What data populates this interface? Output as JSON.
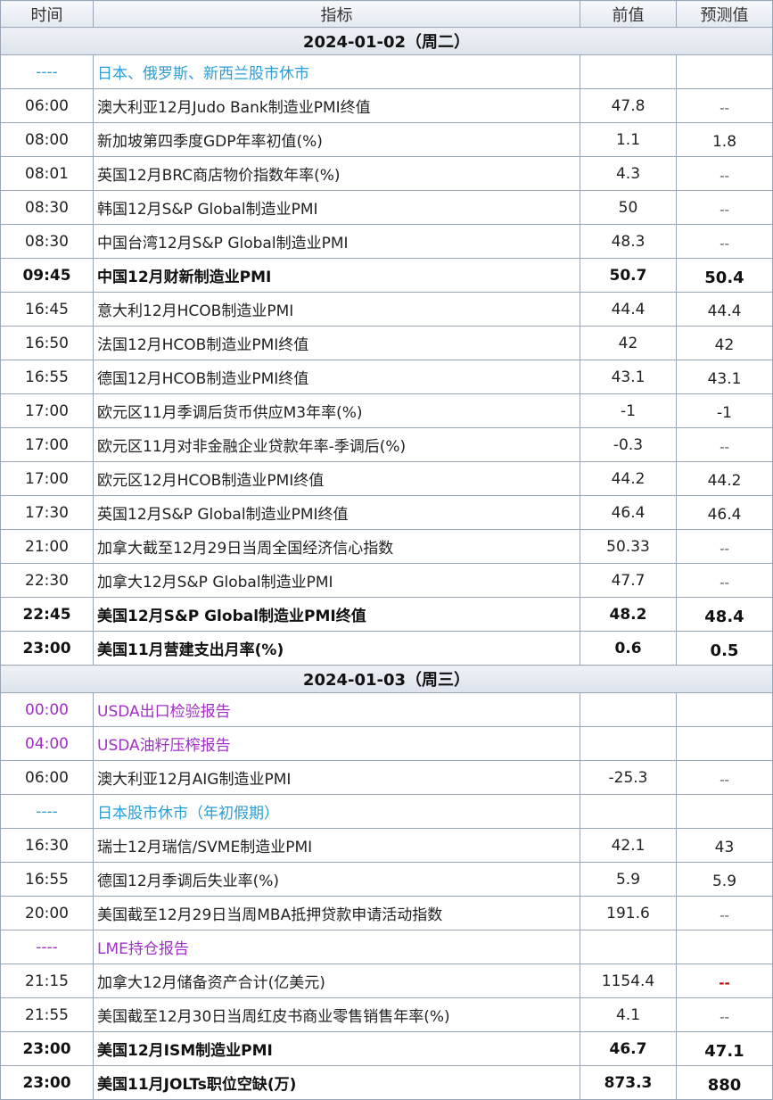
{
  "headers": {
    "time": "时间",
    "indicator": "指标",
    "previous": "前值",
    "forecast": "预测值"
  },
  "sections": [
    {
      "date": "2024-01-02（周二）",
      "rows": [
        {
          "time": "----",
          "indicator": "日本、俄罗斯、新西兰股市休市",
          "previous": "",
          "forecast": "",
          "style": "note-blue"
        },
        {
          "time": "06:00",
          "indicator": "澳大利亚12月Judo Bank制造业PMI终值",
          "previous": "47.8",
          "forecast": "--"
        },
        {
          "time": "08:00",
          "indicator": "新加坡第四季度GDP年率初值(%)",
          "previous": "1.1",
          "forecast": "1.8"
        },
        {
          "time": "08:01",
          "indicator": "英国12月BRC商店物价指数年率(%)",
          "previous": "4.3",
          "forecast": "--"
        },
        {
          "time": "08:30",
          "indicator": "韩国12月S&P Global制造业PMI",
          "previous": "50",
          "forecast": "--"
        },
        {
          "time": "08:30",
          "indicator": "中国台湾12月S&P Global制造业PMI",
          "previous": "48.3",
          "forecast": "--"
        },
        {
          "time": "09:45",
          "indicator": "中国12月财新制造业PMI",
          "previous": "50.7",
          "forecast": "50.4",
          "style": "bold"
        },
        {
          "time": "16:45",
          "indicator": "意大利12月HCOB制造业PMI",
          "previous": "44.4",
          "forecast": "44.4"
        },
        {
          "time": "16:50",
          "indicator": "法国12月HCOB制造业PMI终值",
          "previous": "42",
          "forecast": "42"
        },
        {
          "time": "16:55",
          "indicator": "德国12月HCOB制造业PMI终值",
          "previous": "43.1",
          "forecast": "43.1"
        },
        {
          "time": "17:00",
          "indicator": "欧元区11月季调后货币供应M3年率(%)",
          "previous": "-1",
          "forecast": "-1"
        },
        {
          "time": "17:00",
          "indicator": "欧元区11月对非金融企业贷款年率-季调后(%)",
          "previous": "-0.3",
          "forecast": "--"
        },
        {
          "time": "17:00",
          "indicator": "欧元区12月HCOB制造业PMI终值",
          "previous": "44.2",
          "forecast": "44.2"
        },
        {
          "time": "17:30",
          "indicator": "英国12月S&P Global制造业PMI终值",
          "previous": "46.4",
          "forecast": "46.4"
        },
        {
          "time": "21:00",
          "indicator": "加拿大截至12月29日当周全国经济信心指数",
          "previous": "50.33",
          "forecast": "--"
        },
        {
          "time": "22:30",
          "indicator": "加拿大12月S&P Global制造业PMI",
          "previous": "47.7",
          "forecast": "--"
        },
        {
          "time": "22:45",
          "indicator": "美国12月S&P Global制造业PMI终值",
          "previous": "48.2",
          "forecast": "48.4",
          "style": "bold"
        },
        {
          "time": "23:00",
          "indicator": "美国11月营建支出月率(%)",
          "previous": "0.6",
          "forecast": "0.5",
          "style": "bold"
        }
      ]
    },
    {
      "date": "2024-01-03（周三）",
      "rows": [
        {
          "time": "00:00",
          "indicator": "USDA出口检验报告",
          "previous": "",
          "forecast": "",
          "style": "note-purple"
        },
        {
          "time": "04:00",
          "indicator": "USDA油籽压榨报告",
          "previous": "",
          "forecast": "",
          "style": "note-purple"
        },
        {
          "time": "06:00",
          "indicator": "澳大利亚12月AIG制造业PMI",
          "previous": "-25.3",
          "forecast": "--"
        },
        {
          "time": "----",
          "indicator": "日本股市休市（年初假期）",
          "previous": "",
          "forecast": "",
          "style": "note-blue"
        },
        {
          "time": "16:30",
          "indicator": "瑞士12月瑞信/SVME制造业PMI",
          "previous": "42.1",
          "forecast": "43"
        },
        {
          "time": "16:55",
          "indicator": "德国12月季调后失业率(%)",
          "previous": "5.9",
          "forecast": "5.9"
        },
        {
          "time": "20:00",
          "indicator": "美国截至12月29日当周MBA抵押贷款申请活动指数",
          "previous": "191.6",
          "forecast": "--"
        },
        {
          "time": "----",
          "indicator": "LME持仓报告",
          "previous": "",
          "forecast": "",
          "style": "note-purple"
        },
        {
          "time": "21:15",
          "indicator": "加拿大12月储备资产合计(亿美元)",
          "previous": "1154.4",
          "forecast": "--",
          "forecast_color": "#cc0000"
        },
        {
          "time": "21:55",
          "indicator": "美国截至12月30日当周红皮书商业零售销售年率(%)",
          "previous": "4.1",
          "forecast": "--"
        },
        {
          "time": "23:00",
          "indicator": "美国12月ISM制造业PMI",
          "previous": "46.7",
          "forecast": "47.1",
          "style": "bold"
        },
        {
          "time": "23:00",
          "indicator": "美国11月JOLTs职位空缺(万)",
          "previous": "873.3",
          "forecast": "880",
          "style": "bold"
        }
      ]
    }
  ]
}
